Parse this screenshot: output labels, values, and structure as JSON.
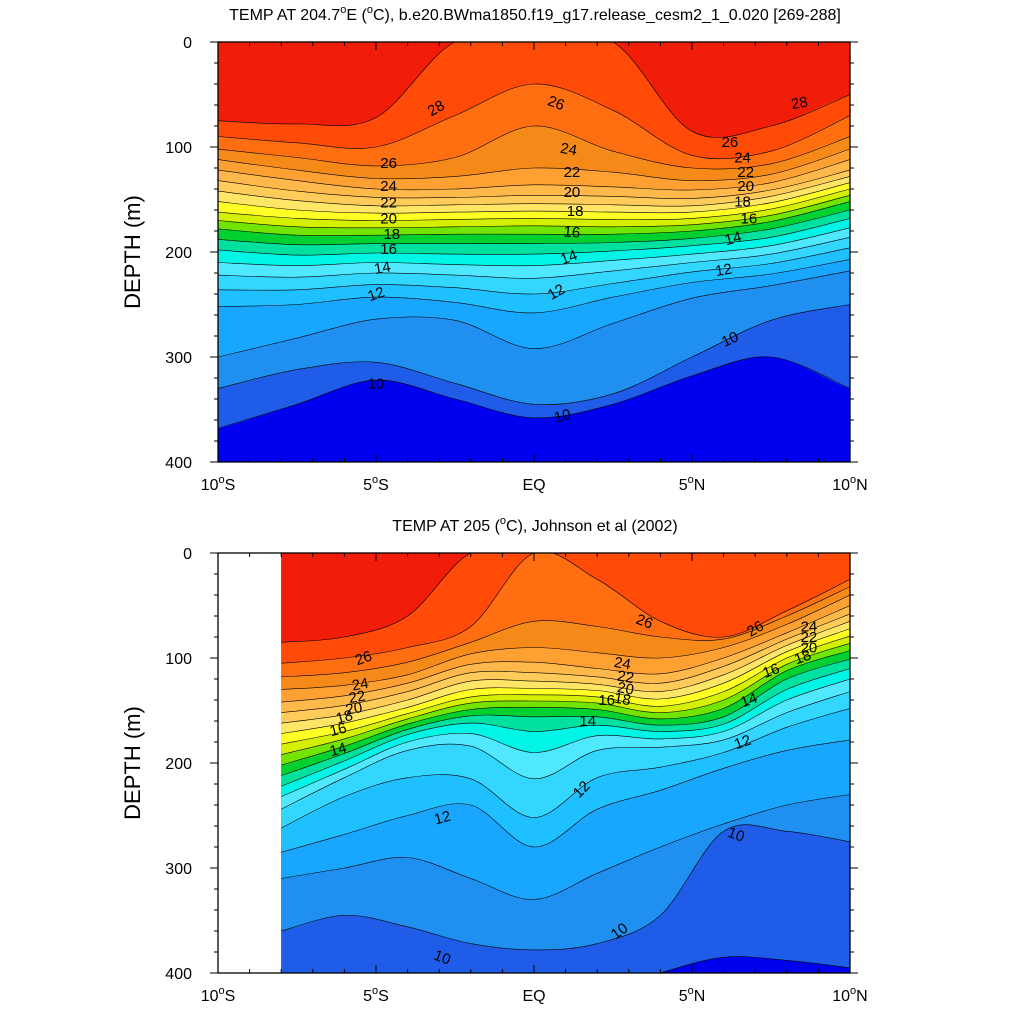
{
  "chart_data": [
    {
      "type": "contour",
      "title": "TEMP AT 204.7°E (°C), b.e20.BWma1850.f19_g17.release_cesm2_1_0.020 [269-288]",
      "xlabel": "",
      "ylabel": "DEPTH (m)",
      "xlim": [
        -10,
        10
      ],
      "ylim": [
        400,
        0
      ],
      "data_xrange": [
        -10,
        10
      ],
      "x_ticks": [
        -10,
        -5,
        0,
        5,
        10
      ],
      "x_tick_labels": [
        "10°S",
        "5°S",
        "EQ",
        "5°N",
        "10°N"
      ],
      "y_ticks": [
        0,
        100,
        200,
        300,
        400
      ],
      "y_tick_labels": [
        "0",
        "100",
        "200",
        "300",
        "400"
      ],
      "contour_levels": [
        9,
        10,
        11,
        12,
        13,
        14,
        15,
        16,
        17,
        18,
        19,
        20,
        21,
        22,
        23,
        24,
        25,
        26,
        27,
        28,
        29
      ],
      "x_samples": [
        -10,
        -7.5,
        -5,
        -2.5,
        0,
        2.5,
        5,
        7.5,
        10
      ],
      "isotherm_depths": [
        {
          "level": 29,
          "depths": [
            0,
            0,
            0,
            0,
            0,
            0,
            0,
            0,
            0
          ]
        },
        {
          "level": 28,
          "depths": [
            75,
            78,
            72,
            0,
            0,
            0,
            85,
            80,
            50
          ]
        },
        {
          "level": 27,
          "depths": [
            90,
            96,
            100,
            70,
            40,
            65,
            108,
            104,
            70
          ]
        },
        {
          "level": 26,
          "depths": [
            102,
            110,
            118,
            110,
            80,
            104,
            120,
            116,
            90
          ]
        },
        {
          "level": 25,
          "depths": [
            112,
            122,
            130,
            128,
            120,
            124,
            132,
            126,
            102
          ]
        },
        {
          "level": 24,
          "depths": [
            122,
            132,
            140,
            140,
            136,
            138,
            141,
            134,
            112
          ]
        },
        {
          "level": 23,
          "depths": [
            132,
            142,
            148,
            148,
            146,
            147,
            149,
            141,
            122
          ]
        },
        {
          "level": 22,
          "depths": [
            142,
            151,
            156,
            155,
            154,
            155,
            156,
            147,
            128
          ]
        },
        {
          "level": 21,
          "depths": [
            152,
            160,
            163,
            162,
            161,
            162,
            162,
            153,
            134
          ]
        },
        {
          "level": 20,
          "depths": [
            162,
            168,
            170,
            169,
            168,
            169,
            168,
            159,
            140
          ]
        },
        {
          "level": 19,
          "depths": [
            170,
            176,
            177,
            176,
            175,
            176,
            174,
            165,
            146
          ]
        },
        {
          "level": 18,
          "depths": [
            178,
            184,
            184,
            183,
            183,
            183,
            180,
            171,
            152
          ]
        },
        {
          "level": 17,
          "depths": [
            188,
            193,
            192,
            192,
            192,
            191,
            187,
            178,
            160
          ]
        },
        {
          "level": 16,
          "depths": [
            198,
            203,
            201,
            202,
            202,
            199,
            194,
            186,
            168
          ]
        },
        {
          "level": 15,
          "depths": [
            210,
            213,
            210,
            212,
            213,
            208,
            202,
            194,
            177
          ]
        },
        {
          "level": 14,
          "depths": [
            222,
            224,
            220,
            222,
            225,
            218,
            210,
            202,
            186
          ]
        },
        {
          "level": 13,
          "depths": [
            236,
            236,
            231,
            234,
            240,
            230,
            219,
            211,
            196
          ]
        },
        {
          "level": 12,
          "depths": [
            252,
            250,
            243,
            248,
            258,
            243,
            229,
            221,
            207
          ]
        },
        {
          "level": 11,
          "depths": [
            300,
            282,
            264,
            265,
            292,
            268,
            244,
            232,
            218
          ]
        },
        {
          "level": 10,
          "depths": [
            330,
            312,
            305,
            325,
            345,
            335,
            300,
            265,
            250
          ]
        },
        {
          "level": 9,
          "depths": [
            368,
            345,
            322,
            340,
            358,
            345,
            318,
            300,
            330
          ]
        }
      ],
      "contour_labels": [
        {
          "text": "28",
          "x": -3.1,
          "depth": 63,
          "angle": -30
        },
        {
          "text": "28",
          "x": 8.4,
          "depth": 58,
          "angle": -10
        },
        {
          "text": "26",
          "x": 0.7,
          "depth": 58,
          "angle": 20
        },
        {
          "text": "26",
          "x": -4.6,
          "depth": 115,
          "angle": 0
        },
        {
          "text": "26",
          "x": 6.2,
          "depth": 95,
          "angle": 0
        },
        {
          "text": "24",
          "x": 1.1,
          "depth": 102,
          "angle": 10
        },
        {
          "text": "24",
          "x": 6.6,
          "depth": 110,
          "angle": 0
        },
        {
          "text": "24",
          "x": -4.6,
          "depth": 137,
          "angle": 0
        },
        {
          "text": "22",
          "x": -4.6,
          "depth": 153,
          "angle": 0
        },
        {
          "text": "22",
          "x": 1.2,
          "depth": 124,
          "angle": 0
        },
        {
          "text": "22",
          "x": 6.7,
          "depth": 124,
          "angle": 0
        },
        {
          "text": "20",
          "x": -4.6,
          "depth": 168,
          "angle": 0
        },
        {
          "text": "20",
          "x": 1.2,
          "depth": 143,
          "angle": 0
        },
        {
          "text": "20",
          "x": 6.7,
          "depth": 137,
          "angle": 0
        },
        {
          "text": "18",
          "x": -4.5,
          "depth": 183,
          "angle": 0
        },
        {
          "text": "18",
          "x": 1.3,
          "depth": 161,
          "angle": 0
        },
        {
          "text": "18",
          "x": 6.6,
          "depth": 152,
          "angle": 0
        },
        {
          "text": "16",
          "x": -4.6,
          "depth": 197,
          "angle": 0
        },
        {
          "text": "16",
          "x": 1.2,
          "depth": 181,
          "angle": 5
        },
        {
          "text": "16",
          "x": 6.8,
          "depth": 168,
          "angle": 0
        },
        {
          "text": "14",
          "x": -4.8,
          "depth": 215,
          "angle": -10
        },
        {
          "text": "14",
          "x": 1.1,
          "depth": 205,
          "angle": -20
        },
        {
          "text": "14",
          "x": 6.3,
          "depth": 187,
          "angle": -15
        },
        {
          "text": "12",
          "x": -5.0,
          "depth": 240,
          "angle": -20
        },
        {
          "text": "12",
          "x": 0.7,
          "depth": 238,
          "angle": -30
        },
        {
          "text": "12",
          "x": 6.0,
          "depth": 217,
          "angle": -10
        },
        {
          "text": "10",
          "x": -5.0,
          "depth": 325,
          "angle": 0
        },
        {
          "text": "10",
          "x": 0.9,
          "depth": 356,
          "angle": -15
        },
        {
          "text": "10",
          "x": 6.2,
          "depth": 283,
          "angle": -25
        }
      ]
    },
    {
      "type": "contour",
      "title": "TEMP AT 205 (°C), Johnson et al (2002)",
      "xlabel": "",
      "ylabel": "DEPTH (m)",
      "xlim": [
        -10,
        10
      ],
      "ylim": [
        400,
        0
      ],
      "data_xrange": [
        -8,
        10
      ],
      "x_ticks": [
        -10,
        -5,
        0,
        5,
        10
      ],
      "x_tick_labels": [
        "10°S",
        "5°S",
        "EQ",
        "5°N",
        "10°N"
      ],
      "y_ticks": [
        0,
        100,
        200,
        300,
        400
      ],
      "y_tick_labels": [
        "0",
        "100",
        "200",
        "300",
        "400"
      ],
      "contour_levels": [
        9,
        10,
        11,
        12,
        13,
        14,
        15,
        16,
        17,
        18,
        19,
        20,
        21,
        22,
        23,
        24,
        25,
        26,
        27,
        28,
        29
      ],
      "x_samples": [
        -8,
        -6,
        -4,
        -2,
        0,
        2,
        4,
        6,
        8,
        10
      ],
      "isotherm_depths": [
        {
          "level": 29,
          "depths": [
            0,
            0,
            0,
            0,
            0,
            0,
            0,
            0,
            0,
            0
          ]
        },
        {
          "level": 28,
          "depths": [
            85,
            80,
            60,
            0,
            0,
            0,
            0,
            0,
            0,
            0
          ]
        },
        {
          "level": 27,
          "depths": [
            105,
            100,
            90,
            70,
            0,
            25,
            65,
            80,
            55,
            25
          ]
        },
        {
          "level": 26,
          "depths": [
            118,
            114,
            104,
            85,
            65,
            70,
            80,
            82,
            60,
            32
          ]
        },
        {
          "level": 25,
          "depths": [
            130,
            126,
            116,
            96,
            90,
            95,
            100,
            90,
            68,
            40
          ]
        },
        {
          "level": 24,
          "depths": [
            142,
            136,
            124,
            106,
            104,
            110,
            115,
            100,
            76,
            50
          ]
        },
        {
          "level": 23,
          "depths": [
            152,
            145,
            132,
            114,
            114,
            118,
            124,
            108,
            82,
            58
          ]
        },
        {
          "level": 22,
          "depths": [
            162,
            154,
            140,
            122,
            122,
            125,
            132,
            116,
            88,
            65
          ]
        },
        {
          "level": 21,
          "depths": [
            172,
            162,
            147,
            130,
            129,
            131,
            139,
            124,
            94,
            72
          ]
        },
        {
          "level": 20,
          "depths": [
            182,
            170,
            153,
            137,
            135,
            137,
            146,
            132,
            100,
            79
          ]
        },
        {
          "level": 19,
          "depths": [
            192,
            177,
            158,
            143,
            141,
            143,
            152,
            140,
            106,
            86
          ]
        },
        {
          "level": 18,
          "depths": [
            202,
            184,
            163,
            149,
            147,
            149,
            158,
            148,
            112,
            93
          ]
        },
        {
          "level": 17,
          "depths": [
            212,
            191,
            168,
            155,
            156,
            156,
            164,
            156,
            120,
            101
          ]
        },
        {
          "level": 16,
          "depths": [
            222,
            198,
            173,
            162,
            170,
            164,
            170,
            163,
            130,
            110
          ]
        },
        {
          "level": 15,
          "depths": [
            232,
            206,
            180,
            172,
            190,
            174,
            177,
            170,
            140,
            120
          ]
        },
        {
          "level": 14,
          "depths": [
            244,
            214,
            188,
            184,
            215,
            188,
            185,
            178,
            152,
            132
          ]
        },
        {
          "level": 13,
          "depths": [
            262,
            232,
            214,
            215,
            252,
            214,
            204,
            190,
            166,
            148
          ]
        },
        {
          "level": 12,
          "depths": [
            285,
            268,
            250,
            240,
            280,
            244,
            226,
            205,
            188,
            178
          ]
        },
        {
          "level": 11,
          "depths": [
            310,
            300,
            290,
            310,
            330,
            305,
            280,
            258,
            240,
            230
          ]
        },
        {
          "level": 10,
          "depths": [
            360,
            345,
            356,
            372,
            378,
            372,
            345,
            265,
            265,
            275
          ]
        },
        {
          "level": 9,
          "depths": [
            420,
            420,
            420,
            420,
            420,
            420,
            400,
            385,
            388,
            395
          ]
        }
      ],
      "contour_labels": [
        {
          "text": "26",
          "x": 3.5,
          "depth": 65,
          "angle": 20
        },
        {
          "text": "26",
          "x": -5.4,
          "depth": 100,
          "angle": -20
        },
        {
          "text": "26",
          "x": 7.0,
          "depth": 72,
          "angle": -30
        },
        {
          "text": "24",
          "x": -5.5,
          "depth": 125,
          "angle": -10
        },
        {
          "text": "24",
          "x": 2.8,
          "depth": 105,
          "angle": 10
        },
        {
          "text": "24",
          "x": 8.7,
          "depth": 70,
          "angle": 0
        },
        {
          "text": "22",
          "x": -5.6,
          "depth": 137,
          "angle": -10
        },
        {
          "text": "22",
          "x": 2.9,
          "depth": 118,
          "angle": 10
        },
        {
          "text": "22",
          "x": 8.7,
          "depth": 80,
          "angle": 0
        },
        {
          "text": "20",
          "x": -5.7,
          "depth": 148,
          "angle": -10
        },
        {
          "text": "20",
          "x": 2.9,
          "depth": 129,
          "angle": 10
        },
        {
          "text": "20",
          "x": 8.7,
          "depth": 90,
          "angle": 0
        },
        {
          "text": "18",
          "x": -6.0,
          "depth": 156,
          "angle": -15
        },
        {
          "text": "18",
          "x": 2.8,
          "depth": 139,
          "angle": 10
        },
        {
          "text": "18",
          "x": 8.5,
          "depth": 99,
          "angle": -20
        },
        {
          "text": "16",
          "x": -6.2,
          "depth": 168,
          "angle": -15
        },
        {
          "text": "16",
          "x": 2.3,
          "depth": 140,
          "angle": 0
        },
        {
          "text": "16",
          "x": 7.5,
          "depth": 112,
          "angle": -20
        },
        {
          "text": "14",
          "x": -6.2,
          "depth": 187,
          "angle": -15
        },
        {
          "text": "14",
          "x": 1.7,
          "depth": 160,
          "angle": 0
        },
        {
          "text": "14",
          "x": 6.8,
          "depth": 140,
          "angle": -20
        },
        {
          "text": "12",
          "x": -2.9,
          "depth": 252,
          "angle": -15
        },
        {
          "text": "12",
          "x": 1.5,
          "depth": 225,
          "angle": -45
        },
        {
          "text": "12",
          "x": 6.6,
          "depth": 180,
          "angle": -20
        },
        {
          "text": "10",
          "x": 6.4,
          "depth": 268,
          "angle": 20
        },
        {
          "text": "10",
          "x": 2.7,
          "depth": 360,
          "angle": -35
        },
        {
          "text": "10",
          "x": -2.9,
          "depth": 385,
          "angle": 20
        }
      ]
    }
  ]
}
